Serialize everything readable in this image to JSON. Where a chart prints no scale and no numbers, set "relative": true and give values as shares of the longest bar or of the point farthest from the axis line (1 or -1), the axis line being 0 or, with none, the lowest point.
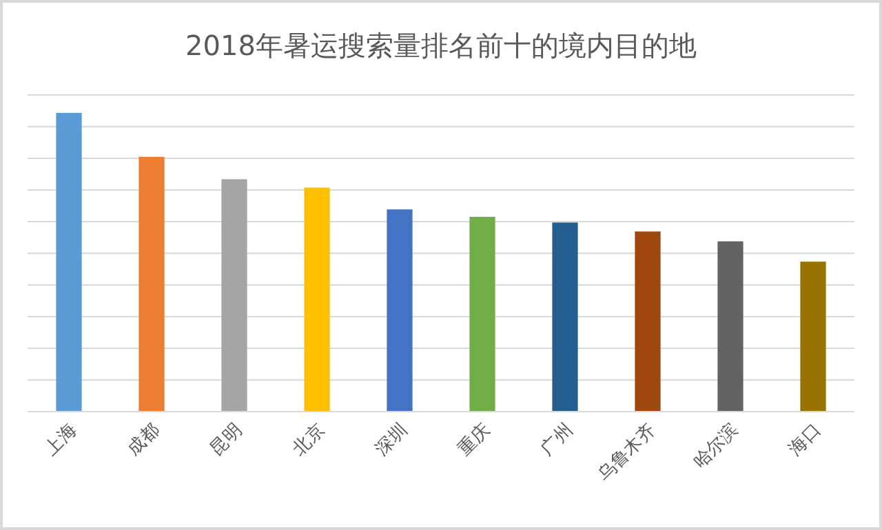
{
  "chart_data": {
    "type": "bar",
    "title": "2018年暑运搜索量排名前十的境内目的地",
    "relative": true,
    "grid": "y",
    "categories": [
      "上海",
      "成都",
      "昆明",
      "北京",
      "深圳",
      "重庆",
      "广州",
      "乌鲁木齐",
      "哈尔滨",
      "海口"
    ],
    "values": [
      1,
      0.853,
      0.778,
      0.75,
      0.677,
      0.652,
      0.633,
      0.603,
      0.57,
      0.502
    ],
    "colors": [
      "#5b9bd5",
      "#ed7d31",
      "#a5a5a5",
      "#ffc000",
      "#4472c4",
      "#70ad47",
      "#255e91",
      "#9e480e",
      "#636363",
      "#997300"
    ]
  }
}
